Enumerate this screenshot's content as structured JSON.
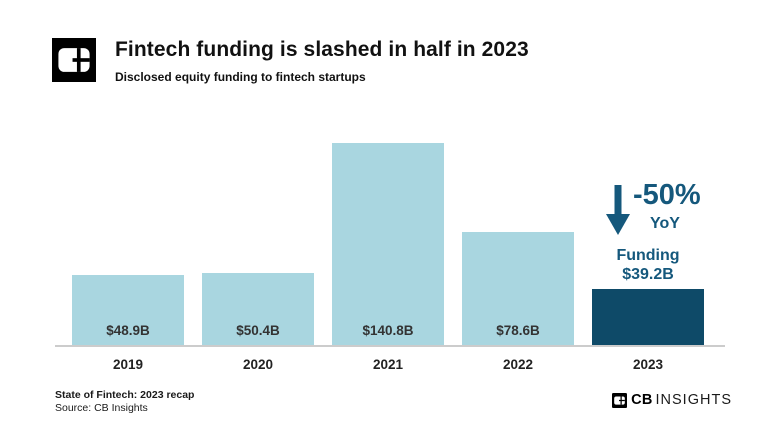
{
  "header": {
    "title": "Fintech funding is slashed in half in 2023",
    "subtitle": "Disclosed equity funding to fintech startups"
  },
  "chart_data": {
    "type": "bar",
    "categories": [
      "2019",
      "2020",
      "2021",
      "2022",
      "2023"
    ],
    "values": [
      48.9,
      50.4,
      140.8,
      78.6,
      39.2
    ],
    "value_labels": [
      "$48.9B",
      "$50.4B",
      "$140.8B",
      "$78.6B",
      ""
    ],
    "highlight_index": 4,
    "title": "Fintech funding is slashed in half in 2023",
    "xlabel": "",
    "ylabel": "",
    "ylim": [
      0,
      150
    ],
    "grid": false,
    "legend": "none",
    "annotation": {
      "percent_change": "-50%",
      "period": "YoY",
      "funding_label": "Funding",
      "funding_value": "$39.2B",
      "arrow_direction": "down"
    }
  },
  "colors": {
    "bar_light": "#a9d6e0",
    "bar_dark": "#0e4a68",
    "annotation_text": "#15587c",
    "axis_line": "#cccccc",
    "value_label": "#333333",
    "title_text": "#111111",
    "logo_bg": "#000000"
  },
  "icons": {
    "header_logo": "cb-insights-logo-mark",
    "annotation_arrow": "down-arrow-icon",
    "brand_logo": "cb-insights-logo-mark"
  },
  "footer": {
    "note_line1": "State of Fintech: 2023 recap",
    "note_line2": "Source: CB Insights",
    "brand_bold": "CB",
    "brand_light": "INSIGHTS"
  }
}
